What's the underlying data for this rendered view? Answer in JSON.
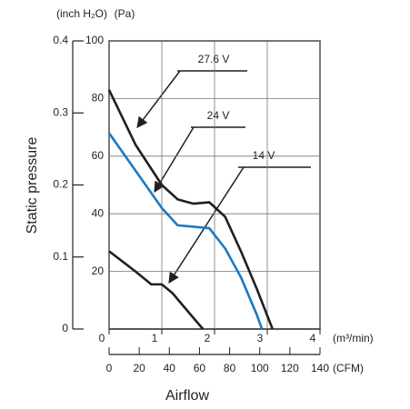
{
  "chart_data": {
    "type": "line",
    "x_label": "(m³/min)",
    "x2_label": "(CFM)",
    "y_label": "(Pa)",
    "y2_label": "(inch H₂O)",
    "y_title": "Static pressure",
    "x_title": "Airflow",
    "xlim": [
      0,
      4
    ],
    "xticks": [
      0,
      1,
      2,
      3,
      4
    ],
    "x2lim": [
      0,
      140
    ],
    "x2ticks": [
      0,
      20,
      40,
      60,
      80,
      100,
      120,
      140
    ],
    "ylim": [
      0,
      100
    ],
    "yticks": [
      20,
      40,
      60,
      80,
      100
    ],
    "y2lim": [
      0,
      0.4
    ],
    "y2ticks": [
      0,
      0.1,
      0.2,
      0.3,
      0.4
    ],
    "grid": true,
    "series": [
      {
        "name": "27.6 V",
        "color": "#231f20",
        "x": [
          0,
          0.5,
          1,
          1.3,
          1.6,
          1.9,
          2.2,
          2.5,
          2.8,
          3.1
        ],
        "values": [
          83,
          64,
          50,
          45,
          43.5,
          44,
          39,
          27,
          14,
          0
        ]
      },
      {
        "name": "24 V",
        "color": "#1a7ac4",
        "x": [
          0,
          0.5,
          1,
          1.3,
          1.6,
          1.9,
          2.2,
          2.5,
          2.8,
          2.9
        ],
        "values": [
          68,
          55,
          42,
          36,
          35.5,
          35,
          28,
          18,
          5,
          0
        ]
      },
      {
        "name": "14 V",
        "color": "#231f20",
        "x": [
          0,
          0.5,
          0.8,
          1,
          1.2,
          1.5,
          1.78
        ],
        "values": [
          27,
          20,
          15.5,
          15.5,
          12.5,
          6,
          0
        ]
      }
    ]
  }
}
